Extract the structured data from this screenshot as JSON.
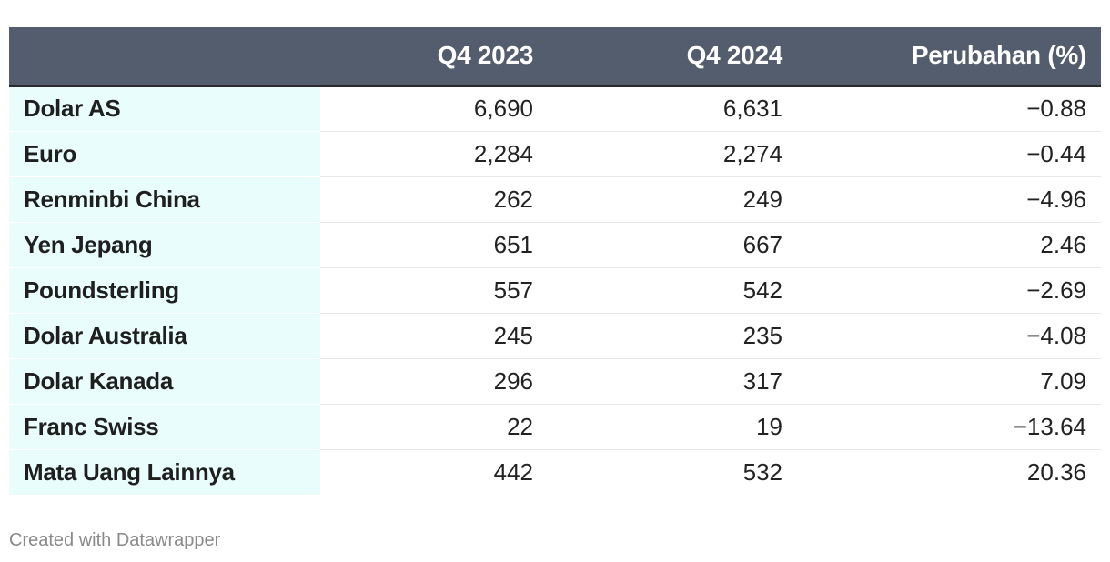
{
  "chart_data": {
    "type": "table",
    "columns": [
      "",
      "Q4 2023",
      "Q4 2024",
      "Perubahan (%)"
    ],
    "rows": [
      {
        "name": "Dolar AS",
        "q4_2023": "6,690",
        "q4_2024": "6,631",
        "change": "−0.88"
      },
      {
        "name": "Euro",
        "q4_2023": "2,284",
        "q4_2024": "2,274",
        "change": "−0.44"
      },
      {
        "name": "Renminbi China",
        "q4_2023": "262",
        "q4_2024": "249",
        "change": "−4.96"
      },
      {
        "name": "Yen Jepang",
        "q4_2023": "651",
        "q4_2024": "667",
        "change": "2.46"
      },
      {
        "name": "Poundsterling",
        "q4_2023": "557",
        "q4_2024": "542",
        "change": "−2.69"
      },
      {
        "name": "Dolar Australia",
        "q4_2023": "245",
        "q4_2024": "235",
        "change": "−4.08"
      },
      {
        "name": "Dolar Kanada",
        "q4_2023": "296",
        "q4_2024": "317",
        "change": "7.09"
      },
      {
        "name": "Franc Swiss",
        "q4_2023": "22",
        "q4_2024": "19",
        "change": "−13.64"
      },
      {
        "name": "Mata Uang Lainnya",
        "q4_2023": "442",
        "q4_2024": "532",
        "change": "20.36"
      }
    ]
  },
  "footer": {
    "credit": "Created with Datawrapper"
  },
  "colors": {
    "header_bg": "#535d6d",
    "name_col_bg": "#e9fdfc"
  }
}
